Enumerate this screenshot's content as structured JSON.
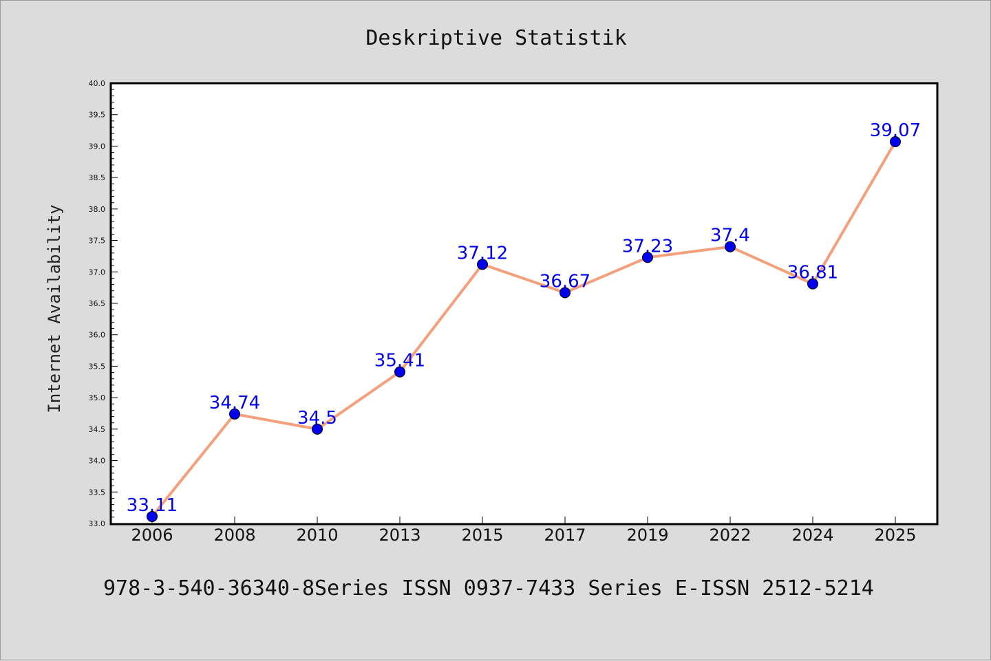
{
  "chart_data": {
    "type": "line",
    "title": "Deskriptive Statistik",
    "ylabel": "Internet Availability",
    "xlabel": "",
    "categories": [
      "2006",
      "2008",
      "2010",
      "2013",
      "2015",
      "2017",
      "2019",
      "2022",
      "2024",
      "2025"
    ],
    "values": [
      33.11,
      34.74,
      34.5,
      35.41,
      37.12,
      36.67,
      37.23,
      37.4,
      36.81,
      39.07
    ],
    "data_labels": [
      "33.11",
      "34.74",
      "34.5",
      "35.41",
      "37.12",
      "36.67",
      "37.23",
      "37.4",
      "36.81",
      "39.07"
    ],
    "ylim": [
      33.0,
      40.0
    ],
    "yticks": [
      "33.0",
      "33.5",
      "34.0",
      "34.5",
      "35.0",
      "35.5",
      "36.0",
      "36.5",
      "37.0",
      "37.5",
      "38.0",
      "38.5",
      "39.0",
      "39.5",
      "40.0"
    ],
    "grid": false,
    "line_color": "#f4a07c",
    "marker_color": "#0000ee",
    "label_color": "#0000ee",
    "footer": "978-3-540-36340-8Series ISSN 0937-7433 Series E-ISSN 2512-5214"
  }
}
